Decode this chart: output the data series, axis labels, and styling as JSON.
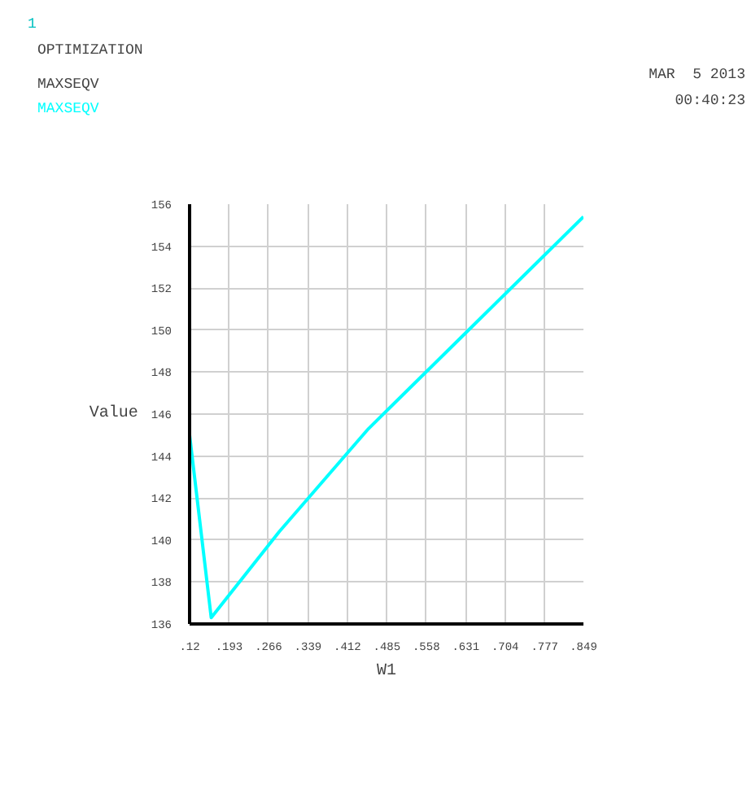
{
  "chart_data": {
    "type": "line",
    "title": "OPTIMIZATION",
    "subtitle": "MAXSEQV",
    "xlabel": "W1",
    "ylabel": "Value",
    "annotations": [
      "1",
      "MAR  5 2013",
      "00:40:23"
    ],
    "x": [
      0.12,
      0.16,
      0.286,
      0.451,
      0.849
    ],
    "series": [
      {
        "name": "MAXSEQV",
        "color": "#00ffff",
        "values": [
          145.0,
          136.3,
          140.4,
          145.3,
          155.4
        ]
      }
    ],
    "xlim": [
      0.12,
      0.849
    ],
    "xticks": [
      {
        "value": 0.12,
        "label": ".12"
      },
      {
        "value": 0.193,
        "label": ".193"
      },
      {
        "value": 0.266,
        "label": ".266"
      },
      {
        "value": 0.339,
        "label": ".339"
      },
      {
        "value": 0.412,
        "label": ".412"
      },
      {
        "value": 0.485,
        "label": ".485"
      },
      {
        "value": 0.558,
        "label": ".558"
      },
      {
        "value": 0.631,
        "label": ".631"
      },
      {
        "value": 0.704,
        "label": ".704"
      },
      {
        "value": 0.777,
        "label": ".777"
      },
      {
        "value": 0.849,
        "label": ".849"
      }
    ],
    "ylim": [
      136,
      156
    ],
    "yticks": [
      136,
      138,
      140,
      142,
      144,
      146,
      148,
      150,
      152,
      154,
      156
    ],
    "grid": true,
    "marker": "none",
    "line_style": "solid"
  }
}
